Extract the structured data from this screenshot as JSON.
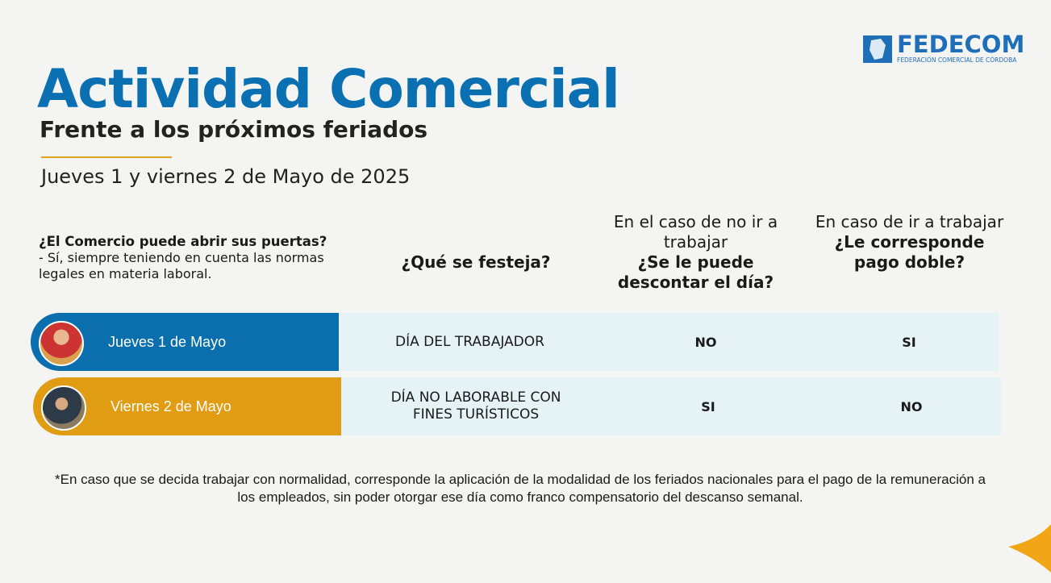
{
  "logo": {
    "name": "FEDECOM",
    "tagline": "FEDERACIÓN COMERCIAL DE CÓRDOBA"
  },
  "header": {
    "title": "Actividad Comercial",
    "subtitle": "Frente a los próximos feriados",
    "date": "Jueves 1 y viernes 2 de Mayo de 2025"
  },
  "intro": {
    "question": "¿El Comercio puede abrir sus puertas?",
    "answer": "- Sí, siempre teniendo en cuenta las normas legales en materia laboral."
  },
  "table": {
    "headers": [
      {
        "bold": "¿Qué se festeja?"
      },
      {
        "lead": "En el caso de no ir a trabajar",
        "bold": "¿Se le puede descontar el día?"
      },
      {
        "lead": "En caso de ir a trabajar",
        "bold": "¿Le corresponde pago doble?"
      }
    ],
    "rows": [
      [
        "Jueves 1 de Mayo",
        "DÍA DEL TRABAJADOR",
        "NO",
        "SI"
      ],
      [
        "Viernes 2 de Mayo",
        "DÍA NO LABORABLE CON FINES TURÍSTICOS",
        "SI",
        "NO"
      ]
    ]
  },
  "footnote": "*En caso que se decida trabajar con normalidad, corresponde la aplicación de la modalidad de los feriados nacionales para el pago de la remuneración a los empleados, sin poder otorgar ese día como franco compensatorio del descanso semanal."
}
